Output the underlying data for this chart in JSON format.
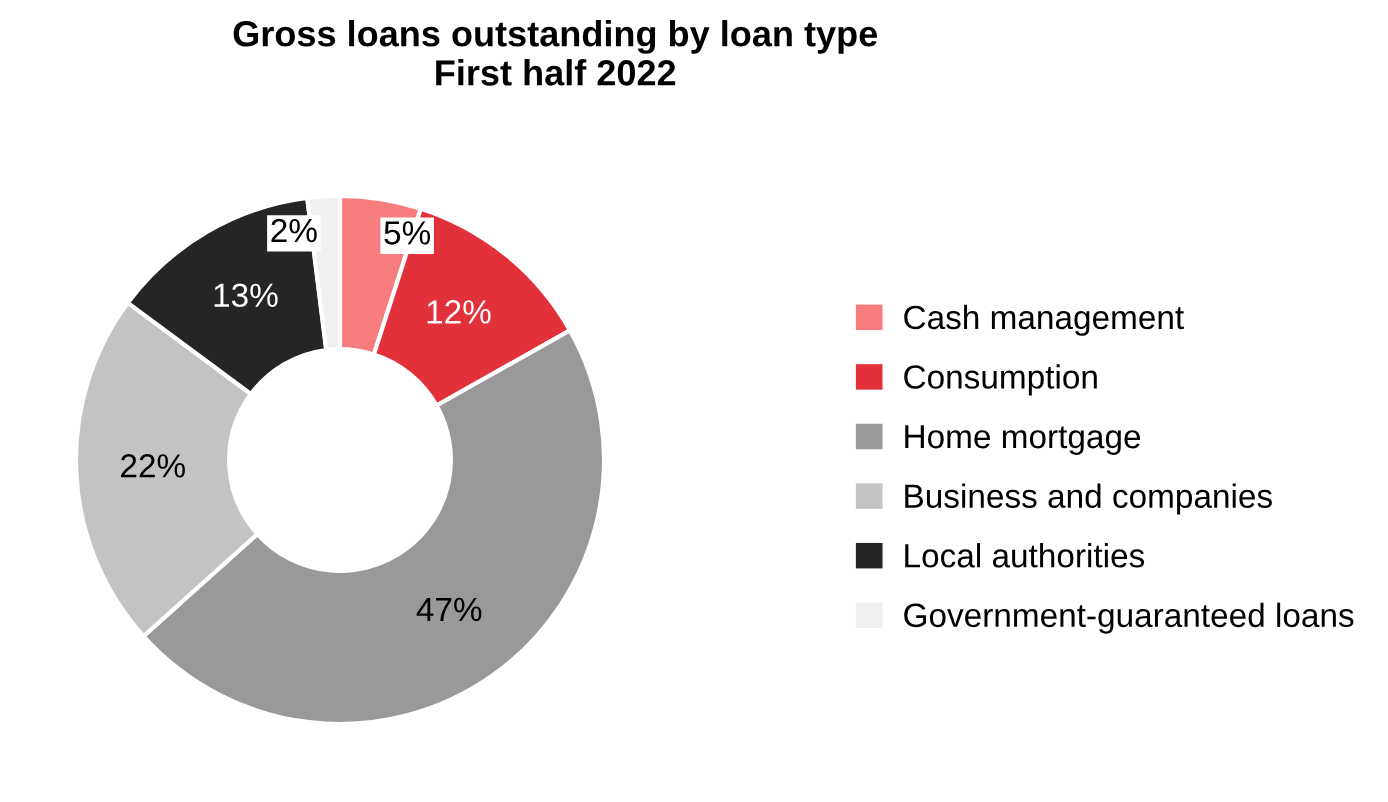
{
  "chart_data": {
    "type": "donut",
    "title": "Gross loans outstanding by loan type\nFirst half 2022",
    "categories": [
      "Cash management",
      "Consumption",
      "Home mortgage",
      "Business and companies",
      "Local authorities",
      "Government-guaranteed loans"
    ],
    "values": [
      5,
      12,
      47,
      22,
      13,
      2
    ],
    "colors": [
      "#f77c7e",
      "#e3313b",
      "#999999",
      "#c3c3c3",
      "#252525",
      "#f0f0f0"
    ],
    "value_labels": [
      "5%",
      "12%",
      "47%",
      "22%",
      "13%",
      "2%"
    ],
    "legend": "right"
  }
}
